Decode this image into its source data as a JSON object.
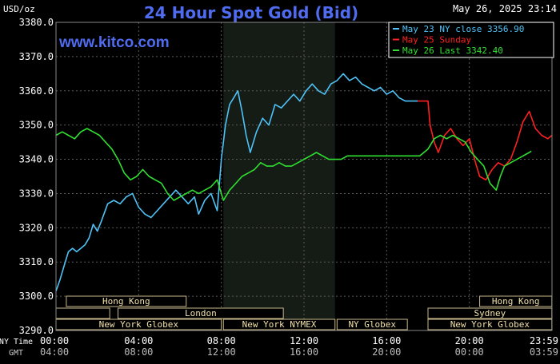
{
  "header": {
    "unit_label": "USD/oz",
    "title": "24 Hour Spot Gold (Bid)",
    "datetime": "May 26, 2025 23:14",
    "website": "www.kitco.com"
  },
  "colors": {
    "background": "#000000",
    "plot_bg": "#000000",
    "night_band": "#151b15",
    "grid": "#5a5a5a",
    "axis_text": "#ffffff",
    "title": "#4f6cf0",
    "website": "#4f6cf0",
    "legend_bg": "#000000",
    "legend_border": "#ffffff",
    "session_bg": "#000000",
    "session_border": "#c8b88a",
    "session_text": "#f0e0a8"
  },
  "legend": [
    {
      "label": "May 23 NY close 3356.90",
      "color": "#4fc3f7"
    },
    {
      "label": "May 25 Sunday",
      "color": "#ff2020"
    },
    {
      "label": "May 26 Last 3342.40",
      "color": "#30e030"
    }
  ],
  "time_axis": {
    "ny_label": "NY Time",
    "gmt_label": "GMT",
    "ny_ticks": [
      "00:00",
      "04:00",
      "08:00",
      "12:00",
      "16:00",
      "20:00",
      "23:59"
    ],
    "gmt_ticks": [
      "04:00",
      "08:00",
      "12:00",
      "16:00",
      "20:00",
      "00:00",
      "03:59"
    ]
  },
  "sessions": [
    {
      "label": "Hong Kong",
      "start": 0.5,
      "end": 6.3,
      "row": 1
    },
    {
      "label": "",
      "start": 0.0,
      "end": 2.6,
      "row": 2
    },
    {
      "label": "London",
      "start": 3.0,
      "end": 11.0,
      "row": 2
    },
    {
      "label": "New York Globex",
      "start": 0.0,
      "end": 8.0,
      "row": 3
    },
    {
      "label": "New York NYMEX",
      "start": 8.1,
      "end": 13.5,
      "row": 3
    },
    {
      "label": "NY Globex",
      "start": 13.6,
      "end": 17.0,
      "row": 3
    },
    {
      "label": "Sydney",
      "start": 18.0,
      "end": 23.99,
      "row": 2
    },
    {
      "label": "Hong Kong",
      "start": 20.5,
      "end": 23.99,
      "row": 1
    },
    {
      "label": "New York Globex",
      "start": 18.0,
      "end": 23.99,
      "row": 3
    }
  ],
  "chart_data": {
    "type": "line",
    "title": "24 Hour Spot Gold (Bid)",
    "ylabel": "USD/oz",
    "xlabel": "NY Time",
    "xlim": [
      0,
      24
    ],
    "ylim": [
      3290,
      3380
    ],
    "y_ticks": [
      3290.0,
      3300.0,
      3310.0,
      3320.0,
      3330.0,
      3340.0,
      3350.0,
      3360.0,
      3370.0,
      3380.0
    ],
    "grid": true,
    "legend_position": "top-right",
    "series": [
      {
        "name": "May 23 NY close 3356.90",
        "color": "#4fc3f7",
        "x": [
          0.0,
          0.2,
          0.4,
          0.6,
          0.8,
          1.0,
          1.2,
          1.4,
          1.6,
          1.8,
          2.0,
          2.2,
          2.5,
          2.8,
          3.1,
          3.4,
          3.7,
          4.0,
          4.3,
          4.6,
          4.9,
          5.2,
          5.5,
          5.8,
          6.1,
          6.4,
          6.7,
          6.9,
          7.2,
          7.5,
          7.8,
          8.0,
          8.2,
          8.4,
          8.6,
          8.8,
          9.0,
          9.2,
          9.4,
          9.7,
          10.0,
          10.3,
          10.6,
          10.9,
          11.2,
          11.5,
          11.8,
          12.1,
          12.4,
          12.7,
          13.0,
          13.3,
          13.6,
          13.9,
          14.2,
          14.5,
          14.8,
          15.1,
          15.4,
          15.7,
          16.0,
          16.3,
          16.6,
          16.9,
          17.1,
          17.3,
          17.5
        ],
        "y": [
          3301.5,
          3305,
          3309,
          3313,
          3314,
          3313,
          3314,
          3315,
          3317,
          3321,
          3319,
          3322,
          3327,
          3328,
          3327,
          3329,
          3330,
          3326,
          3324,
          3323,
          3325,
          3327,
          3329,
          3331,
          3329,
          3327,
          3329,
          3324,
          3328,
          3330,
          3325,
          3340,
          3350,
          3356,
          3358,
          3360,
          3354,
          3347,
          3342,
          3348,
          3352,
          3350,
          3356,
          3355,
          3357,
          3359,
          3357,
          3360,
          3362,
          3360,
          3359,
          3362,
          3363,
          3365,
          3363,
          3364,
          3362,
          3361,
          3360,
          3361,
          3359,
          3360,
          3358,
          3357,
          3357,
          3357,
          3357
        ]
      },
      {
        "name": "May 25 Sunday",
        "color": "#ff2020",
        "x": [
          17.5,
          17.8,
          18.0,
          18.1,
          18.3,
          18.5,
          18.8,
          19.1,
          19.4,
          19.7,
          20.0,
          20.3,
          20.5,
          20.8,
          21.1,
          21.4,
          21.7,
          22.0,
          22.3,
          22.6,
          22.9,
          23.2,
          23.5,
          23.8,
          24.0
        ],
        "y": [
          3357,
          3357,
          3357,
          3350,
          3345,
          3342,
          3347,
          3349,
          3346,
          3344,
          3346,
          3339,
          3335,
          3334,
          3337,
          3339,
          3338,
          3340,
          3345,
          3351,
          3354,
          3349,
          3347,
          3346,
          3347
        ]
      },
      {
        "name": "May 26 Last 3342.40",
        "color": "#30e030",
        "x": [
          0.0,
          0.3,
          0.6,
          0.9,
          1.2,
          1.5,
          1.8,
          2.1,
          2.4,
          2.7,
          3.0,
          3.3,
          3.6,
          3.9,
          4.2,
          4.5,
          4.8,
          5.1,
          5.4,
          5.7,
          6.0,
          6.3,
          6.6,
          6.9,
          7.2,
          7.5,
          7.8,
          8.1,
          8.4,
          8.7,
          9.0,
          9.3,
          9.6,
          9.9,
          10.2,
          10.5,
          10.8,
          11.1,
          11.4,
          11.7,
          12.0,
          12.3,
          12.6,
          12.9,
          13.2,
          13.5,
          13.8,
          14.1,
          14.4,
          17.0,
          17.3,
          17.6,
          18.0,
          18.3,
          18.6,
          18.9,
          19.2,
          19.5,
          19.8,
          20.1,
          20.4,
          20.7,
          21.0,
          21.3,
          21.5,
          21.7,
          22.0,
          22.3,
          22.6,
          22.9,
          23.0
        ],
        "y": [
          3347,
          3348,
          3347,
          3346,
          3348,
          3349,
          3348,
          3347,
          3345,
          3343,
          3340,
          3336,
          3334,
          3335,
          3337,
          3335,
          3334,
          3333,
          3330,
          3328,
          3329,
          3330,
          3331,
          3330,
          3331,
          3332,
          3334,
          3328,
          3331,
          3333,
          3335,
          3336,
          3337,
          3339,
          3338,
          3338,
          3339,
          3338,
          3338,
          3339,
          3340,
          3341,
          3342,
          3341,
          3340,
          3340,
          3340,
          3341,
          3341,
          3341,
          3341,
          3341,
          3343,
          3346,
          3347,
          3346,
          3347,
          3346,
          3345,
          3342,
          3340,
          3338,
          3333,
          3331,
          3335,
          3338,
          3339,
          3340,
          3341,
          3342,
          3342.4
        ]
      }
    ]
  }
}
